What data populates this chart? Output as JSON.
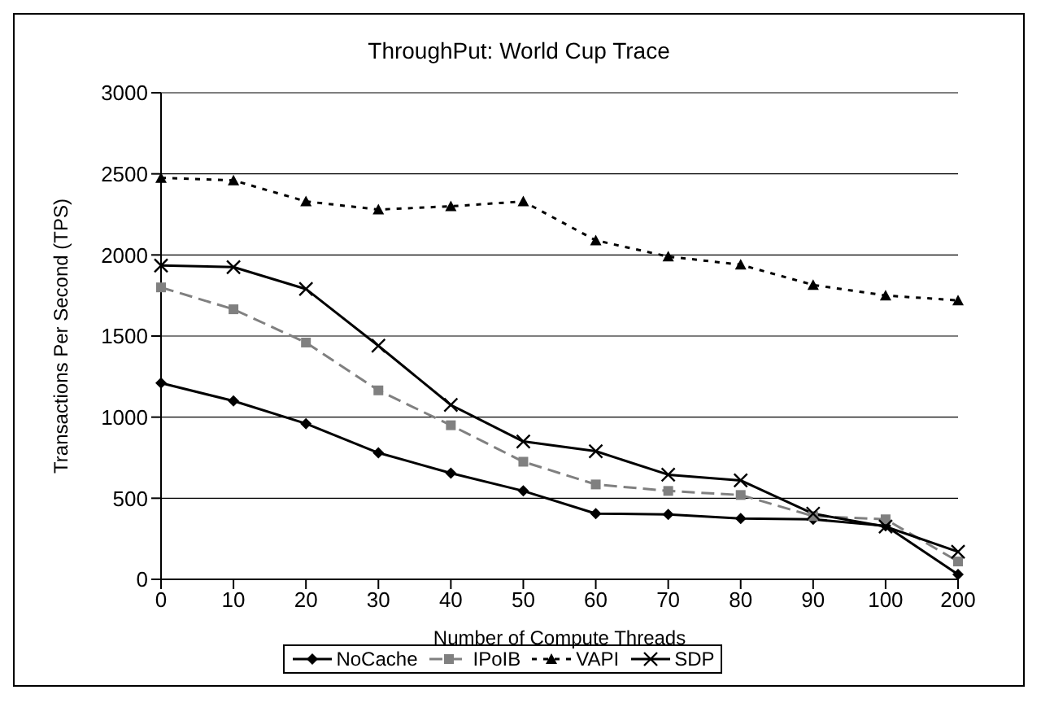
{
  "chart_data": {
    "type": "line",
    "title": "ThroughPut: World Cup Trace",
    "xlabel": "Number of Compute Threads",
    "ylabel": "Transactions Per Second (TPS)",
    "categories": [
      "0",
      "10",
      "20",
      "30",
      "40",
      "50",
      "60",
      "70",
      "80",
      "90",
      "100",
      "200"
    ],
    "ylim": [
      0,
      3000
    ],
    "yticks": [
      0,
      500,
      1000,
      1500,
      2000,
      2500,
      3000
    ],
    "grid": "y",
    "legend": "bottom",
    "series": [
      {
        "name": "NoCache",
        "color": "#000000",
        "marker": "diamond",
        "line_style": "solid",
        "values": [
          1210,
          1100,
          960,
          780,
          655,
          545,
          405,
          400,
          375,
          370,
          330,
          30
        ]
      },
      {
        "name": "IPoIB",
        "color": "#808080",
        "marker": "square",
        "line_style": "dashed",
        "values": [
          1800,
          1665,
          1460,
          1165,
          950,
          725,
          585,
          545,
          520,
          390,
          370,
          110
        ]
      },
      {
        "name": "VAPI",
        "color": "#000000",
        "marker": "triangle",
        "line_style": "dotted",
        "values": [
          2475,
          2460,
          2330,
          2280,
          2300,
          2330,
          2090,
          1990,
          1940,
          1815,
          1750,
          1720
        ]
      },
      {
        "name": "SDP",
        "color": "#000000",
        "marker": "cross",
        "line_style": "solid",
        "values": [
          1935,
          1925,
          1790,
          1440,
          1075,
          850,
          790,
          645,
          610,
          405,
          325,
          170
        ]
      }
    ]
  }
}
